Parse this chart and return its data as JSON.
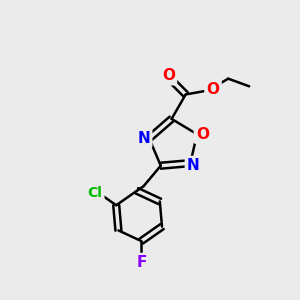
{
  "bg_color": "#ebebeb",
  "bond_color": "#000000",
  "bond_width": 1.8,
  "atom_colors": {
    "O": "#ff0000",
    "N": "#0000ff",
    "Cl": "#00bb00",
    "F": "#8800ff",
    "C": "#000000"
  },
  "font_size_atom": 11,
  "xlim": [
    0,
    10
  ],
  "ylim": [
    0,
    10
  ]
}
